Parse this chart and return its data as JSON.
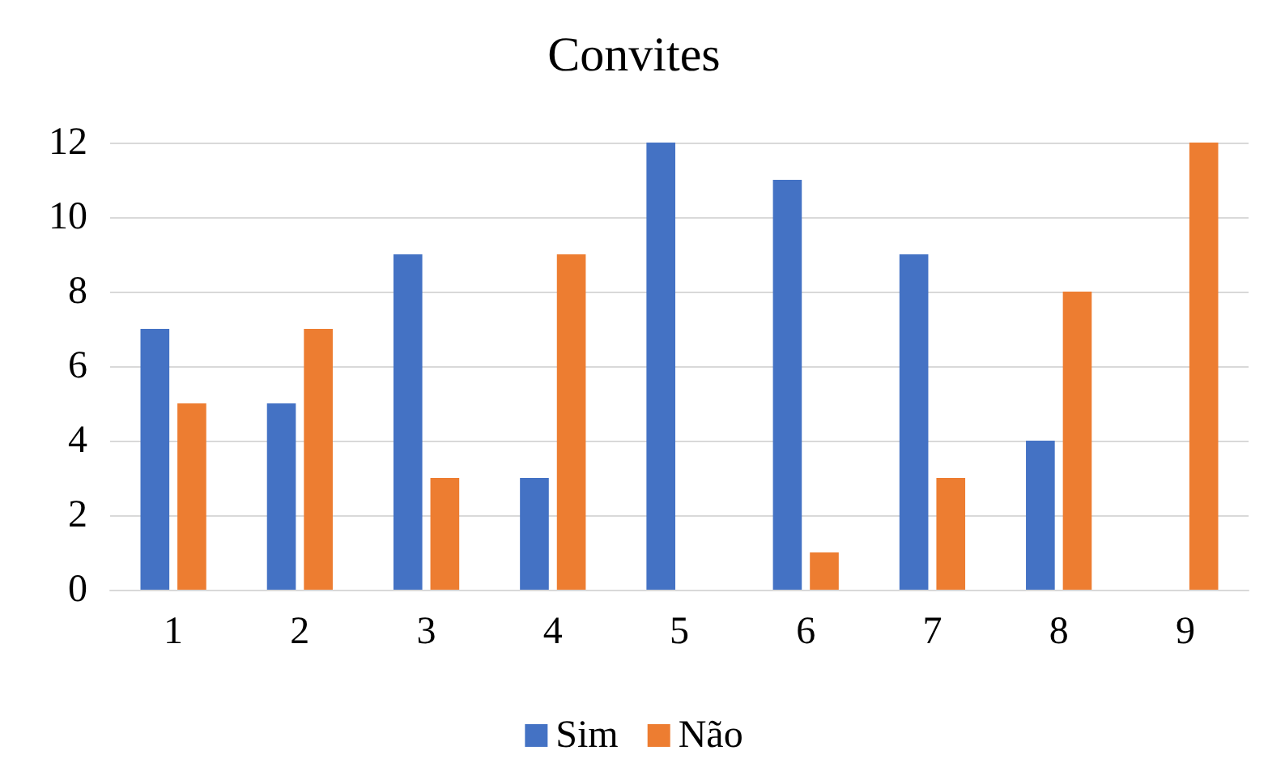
{
  "chart_data": {
    "type": "bar",
    "title": "Convites",
    "categories": [
      "1",
      "2",
      "3",
      "4",
      "5",
      "6",
      "7",
      "8",
      "9"
    ],
    "series": [
      {
        "name": "Sim",
        "color": "#4472c4",
        "values": [
          7,
          5,
          9,
          3,
          12,
          11,
          9,
          4,
          0
        ]
      },
      {
        "name": "Não",
        "color": "#ed7d31",
        "values": [
          5,
          7,
          3,
          9,
          0,
          1,
          3,
          8,
          12
        ]
      }
    ],
    "ylim": [
      0,
      12
    ],
    "yticks": [
      0,
      2,
      4,
      6,
      8,
      10,
      12
    ],
    "grid": "y",
    "legend": "bottom"
  }
}
